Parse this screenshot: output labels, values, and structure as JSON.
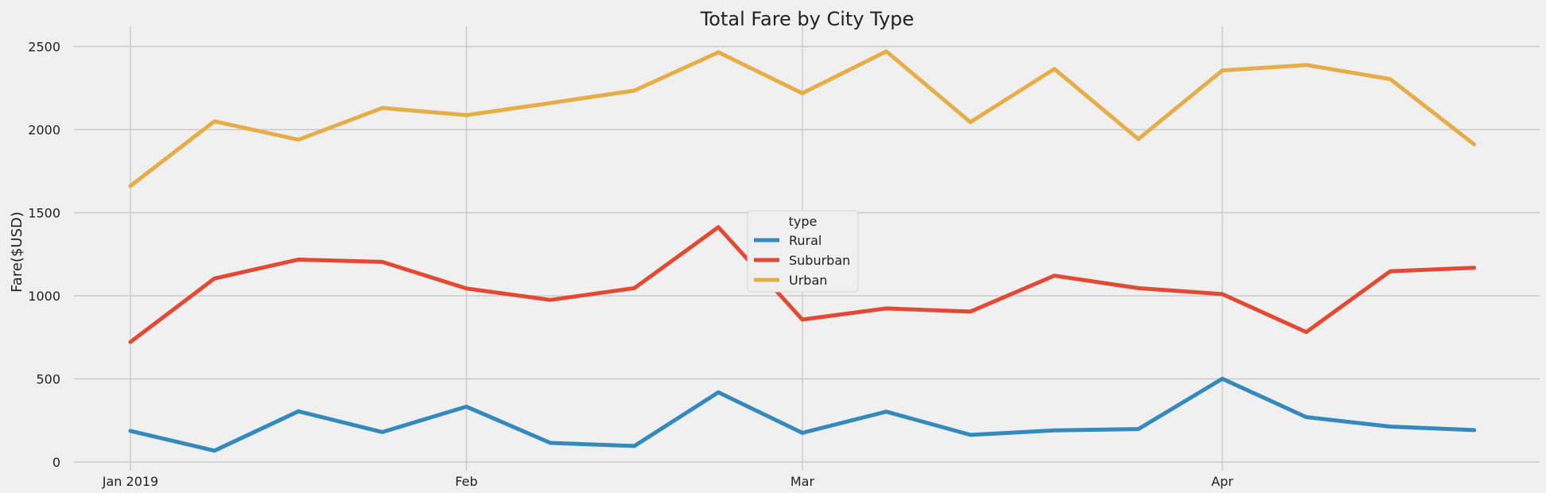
{
  "chart_data": {
    "type": "line",
    "title": "Total Fare by City Type",
    "xlabel": "",
    "ylabel": "Fare($USD)",
    "ylim": [
      0,
      2600
    ],
    "yticks": [
      0,
      500,
      1000,
      1500,
      2000,
      2500
    ],
    "x": [
      "2019-01-06",
      "2019-01-13",
      "2019-01-20",
      "2019-01-27",
      "2019-02-03",
      "2019-02-10",
      "2019-02-17",
      "2019-02-24",
      "2019-03-03",
      "2019-03-10",
      "2019-03-17",
      "2019-03-24",
      "2019-03-31",
      "2019-04-07",
      "2019-04-14",
      "2019-04-21",
      "2019-04-28"
    ],
    "xticks": [
      {
        "date": "2019-01-06",
        "label": "Jan 2019"
      },
      {
        "date": "2019-02-03",
        "label": "Feb"
      },
      {
        "date": "2019-03-03",
        "label": "Mar"
      },
      {
        "date": "2019-04-07",
        "label": "Apr"
      }
    ],
    "grid": true,
    "legend": {
      "title": "type",
      "position": "center"
    },
    "series": [
      {
        "name": "Rural",
        "color": "#348abd",
        "values": [
          187,
          68,
          305,
          180,
          333,
          115,
          96,
          419,
          175,
          303,
          163,
          190,
          198,
          501,
          270,
          213,
          192
        ]
      },
      {
        "name": "Suburban",
        "color": "#e24a33",
        "values": [
          722,
          1104,
          1218,
          1204,
          1044,
          975,
          1046,
          1413,
          857,
          924,
          905,
          1121,
          1046,
          1010,
          782,
          1148,
          1169
        ]
      },
      {
        "name": "Urban",
        "color": "#e6ae48",
        "values": [
          1661,
          2050,
          1939,
          2130,
          2087,
          2160,
          2235,
          2465,
          2219,
          2471,
          2045,
          2365,
          1943,
          2356,
          2389,
          2304,
          1911
        ]
      }
    ]
  }
}
